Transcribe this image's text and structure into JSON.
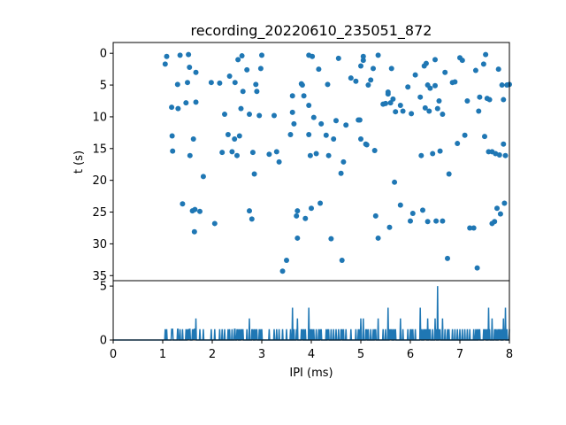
{
  "chart_data": [
    {
      "type": "scatter",
      "title": "recording_20220610_235051_872",
      "ylabel": "t (s)",
      "xlabel": "",
      "xlim": [
        0,
        8
      ],
      "ylim": [
        35.8,
        -1.7
      ],
      "y_inverted": true,
      "grid": false,
      "color": "#1f77b4",
      "yticks": [
        0,
        5,
        10,
        15,
        20,
        25,
        30,
        35
      ],
      "ytick_labels": [
        "0",
        "5",
        "10",
        "15",
        "20",
        "25",
        "30",
        "35"
      ],
      "points": [
        [
          1.05,
          1.7
        ],
        [
          1.08,
          0.5
        ],
        [
          1.18,
          8.5
        ],
        [
          1.19,
          13.0
        ],
        [
          1.2,
          15.4
        ],
        [
          1.3,
          4.9
        ],
        [
          1.31,
          8.7
        ],
        [
          1.35,
          0.3
        ],
        [
          1.4,
          23.7
        ],
        [
          1.47,
          7.8
        ],
        [
          1.5,
          4.6
        ],
        [
          1.52,
          0.2
        ],
        [
          1.54,
          2.2
        ],
        [
          1.55,
          16.1
        ],
        [
          1.6,
          24.8
        ],
        [
          1.62,
          13.5
        ],
        [
          1.64,
          28.1
        ],
        [
          1.65,
          24.6
        ],
        [
          1.67,
          3.0
        ],
        [
          1.67,
          7.7
        ],
        [
          1.75,
          24.9
        ],
        [
          1.82,
          19.4
        ],
        [
          1.98,
          4.6
        ],
        [
          2.05,
          26.8
        ],
        [
          2.15,
          4.7
        ],
        [
          2.2,
          15.6
        ],
        [
          2.25,
          9.6
        ],
        [
          2.32,
          12.8
        ],
        [
          2.35,
          3.6
        ],
        [
          2.4,
          15.5
        ],
        [
          2.45,
          13.5
        ],
        [
          2.46,
          4.6
        ],
        [
          2.5,
          16.1
        ],
        [
          2.52,
          1.0
        ],
        [
          2.55,
          13.0
        ],
        [
          2.58,
          8.7
        ],
        [
          2.6,
          0.4
        ],
        [
          2.62,
          6.0
        ],
        [
          2.7,
          2.6
        ],
        [
          2.75,
          9.6
        ],
        [
          2.75,
          24.8
        ],
        [
          2.8,
          26.1
        ],
        [
          2.82,
          15.6
        ],
        [
          2.85,
          19.0
        ],
        [
          2.88,
          4.9
        ],
        [
          2.9,
          6.0
        ],
        [
          2.95,
          9.8
        ],
        [
          2.98,
          2.4
        ],
        [
          3.0,
          0.3
        ],
        [
          3.15,
          15.9
        ],
        [
          3.25,
          9.8
        ],
        [
          3.35,
          17.1
        ],
        [
          3.3,
          15.5
        ],
        [
          3.42,
          34.3
        ],
        [
          3.5,
          32.6
        ],
        [
          3.58,
          12.8
        ],
        [
          3.62,
          6.7
        ],
        [
          3.62,
          9.3
        ],
        [
          3.65,
          11.1
        ],
        [
          3.7,
          25.6
        ],
        [
          3.72,
          24.8
        ],
        [
          3.72,
          29.1
        ],
        [
          3.8,
          4.8
        ],
        [
          3.82,
          5.0
        ],
        [
          3.85,
          6.7
        ],
        [
          3.88,
          26.0
        ],
        [
          3.95,
          12.8
        ],
        [
          3.95,
          0.3
        ],
        [
          3.95,
          8.2
        ],
        [
          3.98,
          16.1
        ],
        [
          4.0,
          24.4
        ],
        [
          4.02,
          0.5
        ],
        [
          4.05,
          10.1
        ],
        [
          4.1,
          15.8
        ],
        [
          4.15,
          2.5
        ],
        [
          4.18,
          23.6
        ],
        [
          4.2,
          11.1
        ],
        [
          4.3,
          12.9
        ],
        [
          4.33,
          4.9
        ],
        [
          4.35,
          16.1
        ],
        [
          4.4,
          29.2
        ],
        [
          4.45,
          13.5
        ],
        [
          4.5,
          10.6
        ],
        [
          4.55,
          0.8
        ],
        [
          4.6,
          18.9
        ],
        [
          4.62,
          32.6
        ],
        [
          4.65,
          17.1
        ],
        [
          4.7,
          11.3
        ],
        [
          4.8,
          3.9
        ],
        [
          4.9,
          4.4
        ],
        [
          4.95,
          10.5
        ],
        [
          4.98,
          10.5
        ],
        [
          5.0,
          2.0
        ],
        [
          5.0,
          13.5
        ],
        [
          5.05,
          1.1
        ],
        [
          5.05,
          0.5
        ],
        [
          5.1,
          14.3
        ],
        [
          5.12,
          14.4
        ],
        [
          5.15,
          5.0
        ],
        [
          5.2,
          4.2
        ],
        [
          5.25,
          2.4
        ],
        [
          5.28,
          15.3
        ],
        [
          5.3,
          25.6
        ],
        [
          5.35,
          29.1
        ],
        [
          5.35,
          0.3
        ],
        [
          5.45,
          8.0
        ],
        [
          5.5,
          7.9
        ],
        [
          5.55,
          6.4
        ],
        [
          5.55,
          6.1
        ],
        [
          5.58,
          27.4
        ],
        [
          5.6,
          7.8
        ],
        [
          5.62,
          2.4
        ],
        [
          5.65,
          7.2
        ],
        [
          5.68,
          20.3
        ],
        [
          5.7,
          9.2
        ],
        [
          5.8,
          8.2
        ],
        [
          5.8,
          23.9
        ],
        [
          5.85,
          9.1
        ],
        [
          5.95,
          5.3
        ],
        [
          6.0,
          26.4
        ],
        [
          6.02,
          9.5
        ],
        [
          6.05,
          25.2
        ],
        [
          6.1,
          3.4
        ],
        [
          6.2,
          6.9
        ],
        [
          6.22,
          16.1
        ],
        [
          6.25,
          24.7
        ],
        [
          6.28,
          2.0
        ],
        [
          6.3,
          8.6
        ],
        [
          6.32,
          1.6
        ],
        [
          6.35,
          26.5
        ],
        [
          6.35,
          5.0
        ],
        [
          6.38,
          9.1
        ],
        [
          6.4,
          5.5
        ],
        [
          6.45,
          15.8
        ],
        [
          6.5,
          5.1
        ],
        [
          6.5,
          1.0
        ],
        [
          6.52,
          26.4
        ],
        [
          6.55,
          8.7
        ],
        [
          6.58,
          7.5
        ],
        [
          6.6,
          15.4
        ],
        [
          6.65,
          26.4
        ],
        [
          6.65,
          9.6
        ],
        [
          6.7,
          3.0
        ],
        [
          6.75,
          32.3
        ],
        [
          6.78,
          19.0
        ],
        [
          6.85,
          4.6
        ],
        [
          6.9,
          4.5
        ],
        [
          6.95,
          14.2
        ],
        [
          7.0,
          0.7
        ],
        [
          7.05,
          1.1
        ],
        [
          7.1,
          12.9
        ],
        [
          7.15,
          7.5
        ],
        [
          7.2,
          27.5
        ],
        [
          7.28,
          27.5
        ],
        [
          7.32,
          2.7
        ],
        [
          7.35,
          33.8
        ],
        [
          7.38,
          9.1
        ],
        [
          7.4,
          6.9
        ],
        [
          7.48,
          1.7
        ],
        [
          7.5,
          13.1
        ],
        [
          7.52,
          0.2
        ],
        [
          7.55,
          7.1
        ],
        [
          7.58,
          15.5
        ],
        [
          7.6,
          7.3
        ],
        [
          7.65,
          15.5
        ],
        [
          7.65,
          26.8
        ],
        [
          7.7,
          26.5
        ],
        [
          7.72,
          15.8
        ],
        [
          7.75,
          24.4
        ],
        [
          7.78,
          2.5
        ],
        [
          7.8,
          16.0
        ],
        [
          7.82,
          25.3
        ],
        [
          7.85,
          5.0
        ],
        [
          7.88,
          14.3
        ],
        [
          7.88,
          7.3
        ],
        [
          7.9,
          23.6
        ],
        [
          7.92,
          16.1
        ],
        [
          7.95,
          5.0
        ],
        [
          8.0,
          4.9
        ]
      ]
    },
    {
      "type": "line",
      "xlabel": "IPI (ms)",
      "ylabel": "",
      "xlim": [
        0,
        8
      ],
      "ylim": [
        0,
        5.5
      ],
      "color": "#1f77b4",
      "xticks": [
        0,
        1,
        2,
        3,
        4,
        5,
        6,
        7,
        8
      ],
      "xtick_labels": [
        "0",
        "1",
        "2",
        "3",
        "4",
        "5",
        "6",
        "7",
        "8"
      ],
      "yticks": [
        0,
        5
      ],
      "ytick_labels": [
        "0",
        "5"
      ],
      "bin_width": 0.01,
      "events": [
        [
          1.05,
          1
        ],
        [
          1.08,
          1
        ],
        [
          1.18,
          1
        ],
        [
          1.19,
          1
        ],
        [
          1.2,
          1
        ],
        [
          1.3,
          1
        ],
        [
          1.31,
          1
        ],
        [
          1.35,
          1
        ],
        [
          1.4,
          1
        ],
        [
          1.47,
          1
        ],
        [
          1.5,
          1
        ],
        [
          1.52,
          1
        ],
        [
          1.54,
          1
        ],
        [
          1.55,
          1
        ],
        [
          1.6,
          1
        ],
        [
          1.62,
          1
        ],
        [
          1.64,
          1
        ],
        [
          1.65,
          1
        ],
        [
          1.67,
          2
        ],
        [
          1.75,
          1
        ],
        [
          1.82,
          1
        ],
        [
          1.98,
          1
        ],
        [
          2.05,
          1
        ],
        [
          2.15,
          1
        ],
        [
          2.2,
          1
        ],
        [
          2.25,
          1
        ],
        [
          2.32,
          1
        ],
        [
          2.35,
          1
        ],
        [
          2.4,
          1
        ],
        [
          2.45,
          1
        ],
        [
          2.46,
          1
        ],
        [
          2.5,
          1
        ],
        [
          2.52,
          1
        ],
        [
          2.55,
          1
        ],
        [
          2.58,
          1
        ],
        [
          2.6,
          1
        ],
        [
          2.62,
          1
        ],
        [
          2.7,
          1
        ],
        [
          2.75,
          2
        ],
        [
          2.8,
          1
        ],
        [
          2.82,
          1
        ],
        [
          2.85,
          1
        ],
        [
          2.88,
          1
        ],
        [
          2.9,
          1
        ],
        [
          2.95,
          1
        ],
        [
          2.98,
          1
        ],
        [
          3.0,
          1
        ],
        [
          3.15,
          1
        ],
        [
          3.25,
          1
        ],
        [
          3.3,
          1
        ],
        [
          3.35,
          1
        ],
        [
          3.42,
          1
        ],
        [
          3.5,
          1
        ],
        [
          3.58,
          1
        ],
        [
          3.62,
          3
        ],
        [
          3.65,
          1
        ],
        [
          3.7,
          1
        ],
        [
          3.72,
          2
        ],
        [
          3.8,
          1
        ],
        [
          3.82,
          1
        ],
        [
          3.85,
          1
        ],
        [
          3.88,
          1
        ],
        [
          3.95,
          3
        ],
        [
          3.98,
          1
        ],
        [
          4.0,
          1
        ],
        [
          4.02,
          1
        ],
        [
          4.05,
          1
        ],
        [
          4.1,
          1
        ],
        [
          4.15,
          1
        ],
        [
          4.18,
          1
        ],
        [
          4.2,
          1
        ],
        [
          4.3,
          1
        ],
        [
          4.33,
          1
        ],
        [
          4.35,
          1
        ],
        [
          4.4,
          1
        ],
        [
          4.45,
          1
        ],
        [
          4.5,
          1
        ],
        [
          4.55,
          1
        ],
        [
          4.6,
          1
        ],
        [
          4.62,
          1
        ],
        [
          4.65,
          1
        ],
        [
          4.7,
          1
        ],
        [
          4.8,
          1
        ],
        [
          4.9,
          1
        ],
        [
          4.95,
          1
        ],
        [
          4.98,
          1
        ],
        [
          5.0,
          2
        ],
        [
          5.05,
          2
        ],
        [
          5.1,
          1
        ],
        [
          5.12,
          1
        ],
        [
          5.15,
          1
        ],
        [
          5.2,
          1
        ],
        [
          5.25,
          1
        ],
        [
          5.28,
          1
        ],
        [
          5.3,
          1
        ],
        [
          5.35,
          2
        ],
        [
          5.45,
          1
        ],
        [
          5.5,
          1
        ],
        [
          5.55,
          3
        ],
        [
          5.58,
          1
        ],
        [
          5.6,
          1
        ],
        [
          5.62,
          1
        ],
        [
          5.65,
          1
        ],
        [
          5.68,
          1
        ],
        [
          5.7,
          1
        ],
        [
          5.8,
          2
        ],
        [
          5.85,
          1
        ],
        [
          5.95,
          1
        ],
        [
          6.0,
          1
        ],
        [
          6.02,
          1
        ],
        [
          6.05,
          1
        ],
        [
          6.1,
          1
        ],
        [
          6.2,
          3
        ],
        [
          6.22,
          1
        ],
        [
          6.25,
          1
        ],
        [
          6.28,
          1
        ],
        [
          6.3,
          1
        ],
        [
          6.32,
          1
        ],
        [
          6.35,
          2
        ],
        [
          6.38,
          1
        ],
        [
          6.4,
          1
        ],
        [
          6.45,
          1
        ],
        [
          6.5,
          2
        ],
        [
          6.52,
          1
        ],
        [
          6.55,
          5
        ],
        [
          6.58,
          1
        ],
        [
          6.6,
          1
        ],
        [
          6.65,
          2
        ],
        [
          6.7,
          1
        ],
        [
          6.75,
          1
        ],
        [
          6.78,
          1
        ],
        [
          6.85,
          1
        ],
        [
          6.9,
          1
        ],
        [
          6.95,
          1
        ],
        [
          7.0,
          1
        ],
        [
          7.05,
          1
        ],
        [
          7.1,
          1
        ],
        [
          7.15,
          1
        ],
        [
          7.2,
          1
        ],
        [
          7.28,
          1
        ],
        [
          7.32,
          1
        ],
        [
          7.35,
          1
        ],
        [
          7.38,
          1
        ],
        [
          7.4,
          1
        ],
        [
          7.48,
          1
        ],
        [
          7.5,
          1
        ],
        [
          7.52,
          1
        ],
        [
          7.55,
          1
        ],
        [
          7.58,
          3
        ],
        [
          7.6,
          1
        ],
        [
          7.65,
          2
        ],
        [
          7.7,
          1
        ],
        [
          7.72,
          1
        ],
        [
          7.75,
          1
        ],
        [
          7.78,
          1
        ],
        [
          7.8,
          1
        ],
        [
          7.82,
          1
        ],
        [
          7.85,
          1
        ],
        [
          7.88,
          2
        ],
        [
          7.9,
          1
        ],
        [
          7.92,
          3
        ],
        [
          7.95,
          1
        ],
        [
          8.0,
          1
        ]
      ]
    }
  ]
}
